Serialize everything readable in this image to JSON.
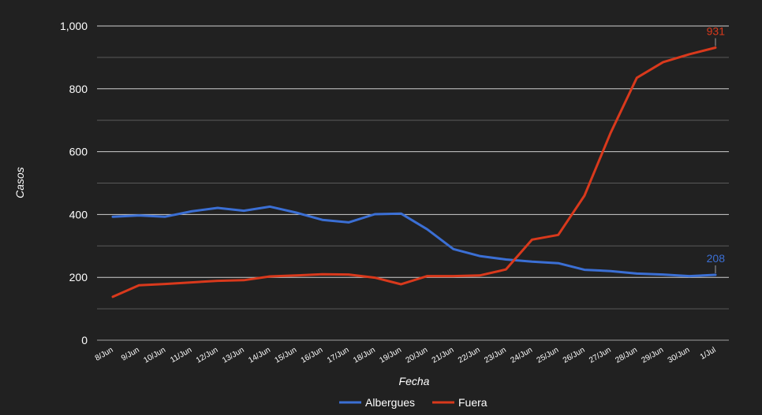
{
  "chart_data": {
    "type": "line",
    "xlabel": "Fecha",
    "ylabel": "Casos",
    "ylim": [
      0,
      1000
    ],
    "yticks": [
      0,
      200,
      400,
      600,
      800,
      1000
    ],
    "ytick_labels": [
      "0",
      "200",
      "400",
      "600",
      "800",
      "1,000"
    ],
    "grid": true,
    "legend_position": "bottom",
    "categories": [
      "8/Jun",
      "9/Jun",
      "10/Jun",
      "11/Jun",
      "12/Jun",
      "13/Jun",
      "14/Jun",
      "15/Jun",
      "16/Jun",
      "17/Jun",
      "18/Jun",
      "19/Jun",
      "20/Jun",
      "21/Jun",
      "22/Jun",
      "23/Jun",
      "24/Jun",
      "25/Jun",
      "26/Jun",
      "27/Jun",
      "28/Jun",
      "29/Jun",
      "30/Jun",
      "1/Jul"
    ],
    "series": [
      {
        "name": "Albergues",
        "color": "#3b6fd4",
        "values": [
          393,
          397,
          393,
          410,
          421,
          412,
          425,
          406,
          383,
          375,
          401,
          403,
          353,
          290,
          268,
          257,
          250,
          245,
          224,
          220,
          212,
          209,
          204,
          208
        ],
        "end_label": "208"
      },
      {
        "name": "Fuera",
        "color": "#d9391c",
        "values": [
          138,
          175,
          179,
          184,
          189,
          191,
          203,
          206,
          210,
          209,
          199,
          178,
          204,
          204,
          206,
          225,
          320,
          335,
          460,
          660,
          835,
          885,
          910,
          931
        ],
        "end_label": "931"
      }
    ]
  }
}
